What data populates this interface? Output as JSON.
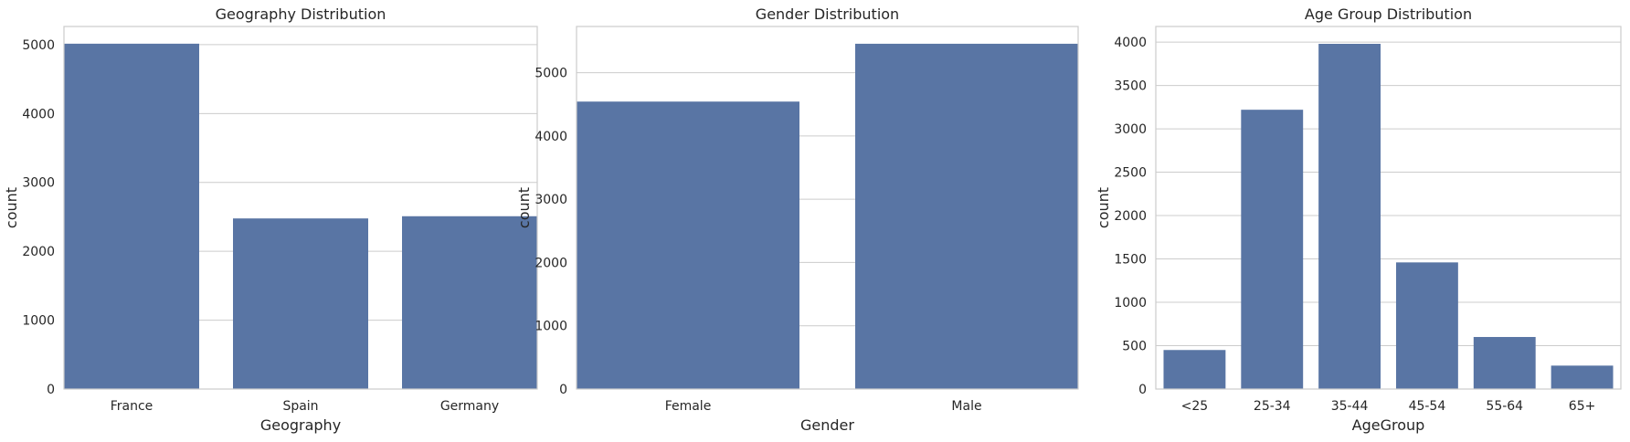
{
  "chart_data": [
    {
      "type": "bar",
      "title": "Geography Distribution",
      "xlabel": "Geography",
      "ylabel": "count",
      "categories": [
        "France",
        "Spain",
        "Germany"
      ],
      "values": [
        5014,
        2477,
        2509
      ],
      "ylim": [
        0,
        5264
      ],
      "yticks": [
        0,
        1000,
        2000,
        3000,
        4000,
        5000
      ],
      "grid": true,
      "color": "#5975a4"
    },
    {
      "type": "bar",
      "title": "Gender Distribution",
      "xlabel": "Gender",
      "ylabel": "count",
      "categories": [
        "Female",
        "Male"
      ],
      "values": [
        4543,
        5457
      ],
      "ylim": [
        0,
        5730
      ],
      "yticks": [
        0,
        1000,
        2000,
        3000,
        4000,
        5000
      ],
      "grid": true,
      "color": "#5975a4"
    },
    {
      "type": "bar",
      "title": "Age Group Distribution",
      "xlabel": "AgeGroup",
      "ylabel": "count",
      "categories": [
        "<25",
        "25-34",
        "35-44",
        "45-54",
        "55-64",
        "65+"
      ],
      "values": [
        450,
        3220,
        3980,
        1460,
        600,
        270
      ],
      "ylim": [
        0,
        4180
      ],
      "yticks": [
        0,
        500,
        1000,
        1500,
        2000,
        2500,
        3000,
        3500,
        4000
      ],
      "grid": true,
      "color": "#5975a4"
    }
  ]
}
